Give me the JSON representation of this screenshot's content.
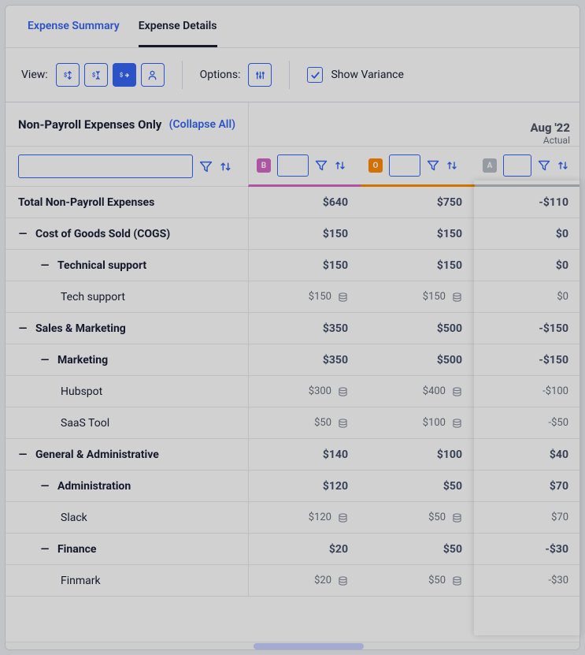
{
  "tabs": {
    "summary": "Expense Summary",
    "details": "Expense Details"
  },
  "toolbar": {
    "view_label": "View:",
    "options_label": "Options:",
    "show_variance_label": "Show Variance"
  },
  "header": {
    "title": "Non-Payroll Expenses Only",
    "collapse_all": "(Collapse All)",
    "month": "Aug '22",
    "month_type": "Actual"
  },
  "badges": {
    "b": "B",
    "o": "O",
    "a": "A"
  },
  "total_row": {
    "label": "Total Non-Payroll Expenses",
    "col_b": "$640",
    "col_o": "$750",
    "col_a": "-$110"
  },
  "sections": [
    {
      "label": "Cost of Goods Sold (COGS)",
      "col_b": "$150",
      "col_o": "$150",
      "col_a": "$0",
      "subs": [
        {
          "label": "Technical support",
          "col_b": "$150",
          "col_o": "$150",
          "col_a": "$0",
          "leaves": [
            {
              "label": "Tech support",
              "col_b": "$150",
              "col_o": "$150",
              "col_a": "$0",
              "icon": true
            }
          ]
        }
      ]
    },
    {
      "label": "Sales & Marketing",
      "col_b": "$350",
      "col_o": "$500",
      "col_a": "-$150",
      "subs": [
        {
          "label": "Marketing",
          "col_b": "$350",
          "col_o": "$500",
          "col_a": "-$150",
          "leaves": [
            {
              "label": "Hubspot",
              "col_b": "$300",
              "col_o": "$400",
              "col_a": "-$100",
              "icon": true
            },
            {
              "label": "SaaS Tool",
              "col_b": "$50",
              "col_o": "$100",
              "col_a": "-$50",
              "icon": true
            }
          ]
        }
      ]
    },
    {
      "label": "General & Administrative",
      "col_b": "$140",
      "col_o": "$100",
      "col_a": "$40",
      "subs": [
        {
          "label": "Administration",
          "col_b": "$120",
          "col_o": "$50",
          "col_a": "$70",
          "leaves": [
            {
              "label": "Slack",
              "col_b": "$120",
              "col_o": "$50",
              "col_a": "$70",
              "icon": true
            }
          ]
        },
        {
          "label": "Finance",
          "col_b": "$20",
          "col_o": "$50",
          "col_a": "-$30",
          "leaves": [
            {
              "label": "Finmark",
              "col_b": "$20",
              "col_o": "$50",
              "col_a": "-$30",
              "icon": true
            }
          ]
        }
      ]
    }
  ],
  "colors": {
    "accent": "#3665f3",
    "badge_b": "#d666c7",
    "badge_o": "#ff8a00",
    "badge_a": "#b7bcc5"
  }
}
